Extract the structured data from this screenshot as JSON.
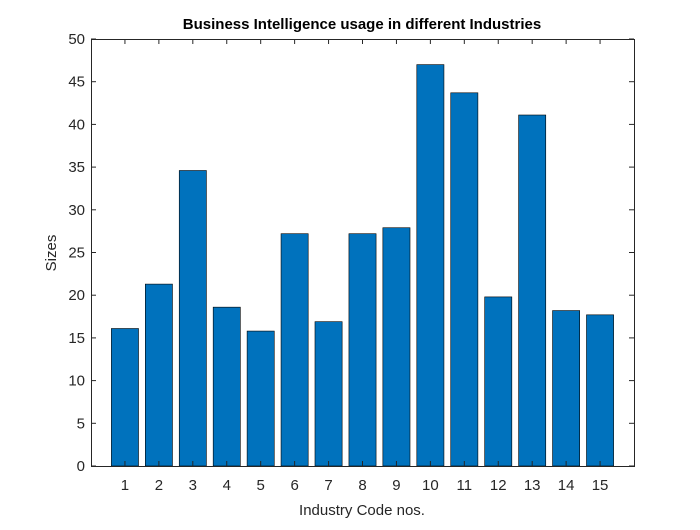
{
  "chart_data": {
    "type": "bar",
    "title": "Business Intelligence usage in different Industries",
    "xlabel": "Industry Code nos.",
    "ylabel": "Sizes",
    "categories": [
      "1",
      "2",
      "3",
      "4",
      "5",
      "6",
      "7",
      "8",
      "9",
      "10",
      "11",
      "12",
      "13",
      "14",
      "15"
    ],
    "values": [
      16.1,
      21.3,
      34.6,
      18.6,
      15.8,
      27.2,
      16.9,
      27.2,
      27.9,
      47.0,
      43.7,
      19.8,
      41.1,
      18.2,
      17.7
    ],
    "ylim": [
      0,
      50
    ],
    "yticks": [
      "0",
      "5",
      "10",
      "15",
      "20",
      "25",
      "30",
      "35",
      "40",
      "45",
      "50"
    ],
    "grid": false,
    "colors": {
      "bar_fill": "#0072BD",
      "bar_edge": "#000000",
      "axis": "#262626"
    }
  }
}
